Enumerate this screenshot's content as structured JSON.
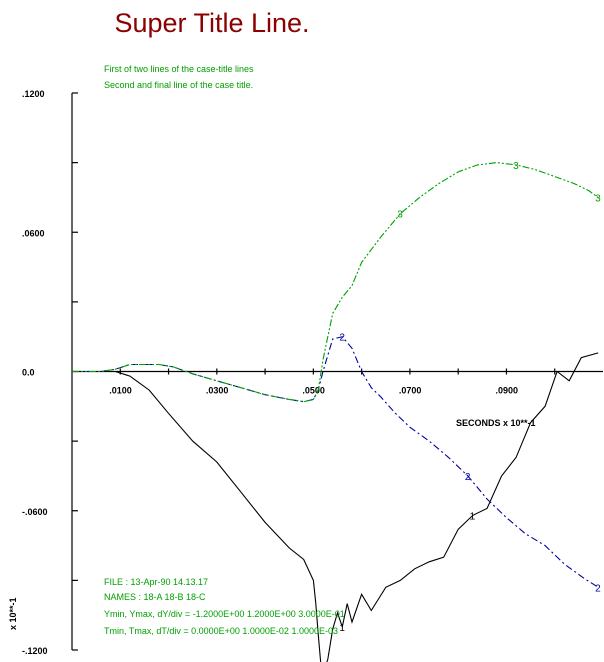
{
  "colors": {
    "supertitle": "#8b0000",
    "annotation": "#00a000",
    "axis": "#000000",
    "series1": "#000000",
    "series2": "#0000a0",
    "series3": "#00a000"
  },
  "chart_data": {
    "type": "line",
    "supertitle": "Super Title Line.",
    "case_title": [
      "First of two lines of the case-title lines",
      "Second and final line of the case title."
    ],
    "xlabel": "SECONDS x 10**-1",
    "ylabel": "x 10**-1",
    "xlim": [
      0.0,
      0.11
    ],
    "ylim": [
      -0.12,
      0.12
    ],
    "x_ticks": [
      0.01,
      0.03,
      0.05,
      0.07,
      0.09
    ],
    "x_tick_labels": [
      ".0100",
      ".0300",
      ".0500",
      ".0700",
      ".0900"
    ],
    "y_ticks": [
      0.12,
      0.06,
      0.0,
      -0.06,
      -0.12
    ],
    "y_tick_labels": [
      ".1200",
      ".0600",
      "0.0",
      "-.0600",
      "-.1200"
    ],
    "footer_lines": [
      "FILE : 13-Apr-90  14.13.17",
      "NAMES : 18-A   18-B   18-C",
      "Ymin, Ymax, dY/div =  -1.2000E+00   1.2000E+00   3.0000E-01",
      "Tmin, Tmax, dT/div =  0.0000E+00   1.0000E-02   1.0000E-03"
    ],
    "series": [
      {
        "label": "1",
        "style": "solid",
        "x": [
          0.0,
          0.005,
          0.009,
          0.012,
          0.016,
          0.02,
          0.025,
          0.03,
          0.035,
          0.04,
          0.045,
          0.048,
          0.05,
          0.0505,
          0.051,
          0.0515,
          0.052,
          0.053,
          0.054,
          0.055,
          0.056,
          0.057,
          0.058,
          0.06,
          0.062,
          0.065,
          0.068,
          0.071,
          0.074,
          0.077,
          0.08,
          0.083,
          0.086,
          0.089,
          0.092,
          0.095,
          0.098,
          0.1005,
          0.103,
          0.1055,
          0.109
        ],
        "y": [
          0.0,
          0.0,
          0.0,
          -0.002,
          -0.008,
          -0.018,
          -0.03,
          -0.039,
          -0.052,
          -0.065,
          -0.076,
          -0.081,
          -0.09,
          -0.1,
          -0.113,
          -0.125,
          -0.13,
          -0.124,
          -0.111,
          -0.104,
          -0.11,
          -0.1,
          -0.108,
          -0.096,
          -0.103,
          -0.093,
          -0.09,
          -0.085,
          -0.082,
          -0.08,
          -0.068,
          -0.062,
          -0.059,
          -0.045,
          -0.037,
          -0.022,
          -0.015,
          0.0,
          -0.004,
          0.006,
          0.008
        ]
      },
      {
        "label": "2",
        "style": "dash-dot",
        "x": [
          0.0,
          0.003,
          0.006,
          0.009,
          0.012,
          0.015,
          0.018,
          0.021,
          0.025,
          0.03,
          0.035,
          0.04,
          0.045,
          0.048,
          0.05,
          0.051,
          0.052,
          0.053,
          0.054,
          0.056,
          0.058,
          0.06,
          0.062,
          0.064,
          0.067,
          0.07,
          0.074,
          0.078,
          0.082,
          0.086,
          0.09,
          0.094,
          0.098,
          0.102,
          0.106,
          0.109
        ],
        "y": [
          0.0,
          0.0,
          0.0,
          0.001,
          0.003,
          0.003,
          0.003,
          0.002,
          -0.001,
          -0.004,
          -0.007,
          -0.01,
          -0.012,
          -0.013,
          -0.012,
          -0.008,
          0.0,
          0.007,
          0.014,
          0.015,
          0.01,
          0.0,
          -0.007,
          -0.011,
          -0.018,
          -0.024,
          -0.03,
          -0.037,
          -0.045,
          -0.055,
          -0.063,
          -0.07,
          -0.075,
          -0.083,
          -0.089,
          -0.093
        ]
      },
      {
        "label": "3",
        "style": "dash-dot-dot",
        "x": [
          0.0,
          0.003,
          0.006,
          0.009,
          0.012,
          0.015,
          0.018,
          0.021,
          0.025,
          0.03,
          0.035,
          0.04,
          0.045,
          0.048,
          0.05,
          0.051,
          0.052,
          0.053,
          0.054,
          0.056,
          0.058,
          0.06,
          0.064,
          0.068,
          0.072,
          0.076,
          0.08,
          0.084,
          0.088,
          0.092,
          0.096,
          0.1,
          0.104,
          0.107,
          0.109
        ],
        "y": [
          0.0,
          0.0,
          0.0,
          0.001,
          0.003,
          0.003,
          0.003,
          0.002,
          -0.001,
          -0.004,
          -0.007,
          -0.01,
          -0.012,
          -0.013,
          -0.012,
          -0.008,
          0.005,
          0.015,
          0.025,
          0.032,
          0.037,
          0.047,
          0.058,
          0.068,
          0.075,
          0.081,
          0.086,
          0.089,
          0.09,
          0.089,
          0.087,
          0.084,
          0.081,
          0.078,
          0.075
        ]
      }
    ]
  }
}
